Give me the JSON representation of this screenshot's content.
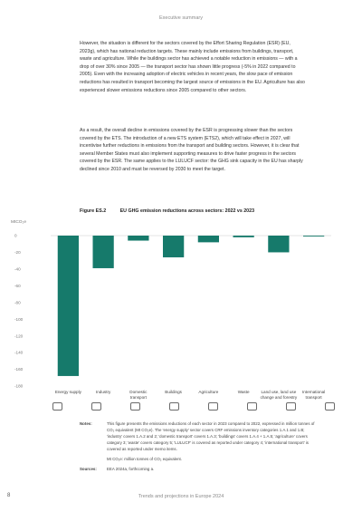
{
  "header": {
    "section": "Executive summary"
  },
  "paragraphs": [
    "However, the situation is different for the sectors covered by the Effort Sharing Regulation (ESR) (EU, 2023g), which has national reduction targets. These mainly include emissions from buildings, transport, waste and agriculture. While the buildings sector has achieved a notable reduction in emissions — with a drop of over 30% since 2005 — the transport sector has shown little progress (-5% in 2022 compared to 2005). Even with the increasing adoption of electric vehicles in recent years, the slow pace of emission reductions has resulted in transport becoming the largest source of emissions in the EU. Agriculture has also experienced slower emissions reductions since 2005 compared to other sectors.",
    "As a result, the overall decline in emissions covered by the ESR is progressing slower than the sectors covered by the ETS. The introduction of a new ETS system (ETS2), which will take effect in 2027, will incentivise further reductions in emissions from the transport and building sectors. However, it is clear that several Member States must also implement supporting measures to drive faster progress in the sectors covered by the ESR. The same applies to the LULUCF sector: the GHG sink capacity in the EU has sharply declined since 2010 and must be reversed by 2030 to meet the target."
  ],
  "figure": {
    "number": "Figure ES.2",
    "title": "EU GHG emission reductions across sectors: 2022 vs 2023"
  },
  "chart_data": {
    "type": "bar",
    "unit_label": "MtCO₂e",
    "categories": [
      "Energy supply",
      "Industry",
      "Domestic transport",
      "Buildings",
      "Agriculture",
      "Waste",
      "Land use, land use change and forestry",
      "International transport"
    ],
    "category_lines": [
      [
        "Energy supply"
      ],
      [
        "Industry"
      ],
      [
        "Domestic",
        "transport"
      ],
      [
        "Buildings"
      ],
      [
        "Agriculture"
      ],
      [
        "Waste"
      ],
      [
        "Land use, land use",
        "change and forestry"
      ],
      [
        "International",
        "transport"
      ]
    ],
    "values": [
      -168,
      -39,
      -6,
      -26,
      -8,
      -2,
      -20,
      -1
    ],
    "ylim": [
      -180,
      0
    ],
    "yticks": [
      0,
      -20,
      -40,
      -60,
      -80,
      -100,
      -120,
      -140,
      -160,
      -180
    ],
    "bar_color": "#167a6b",
    "grid": false
  },
  "notes": {
    "notes_label": "Notes:",
    "notes_text": "This figure presents the emissions reductions of each sector in 2023 compared to 2022, expressed in million tonnes of CO₂ equivalent (Mt CO₂e). The 'energy supply' sector covers CRF emissions inventory categories 1.A.1 and 1.B; 'industry' covers 1.A.2 and 2; 'domestic transport' covers 1.A.3; 'buildings' covers 1.A.4 + 1.A.5; 'agriculture' covers category 3; 'waste' covers category 5; 'LULUCF' is covered as reported under category 4; 'international transport' is covered as reported under memo items.",
    "notes_sub": "Mt CO₂e: million tonnes of CO₂ equivalent.",
    "sources_label": "Sources:",
    "sources_text": "EEA 2024a, forthcoming a."
  },
  "footer": {
    "page_number": "8",
    "title": "Trends and projections in Europe 2024"
  }
}
